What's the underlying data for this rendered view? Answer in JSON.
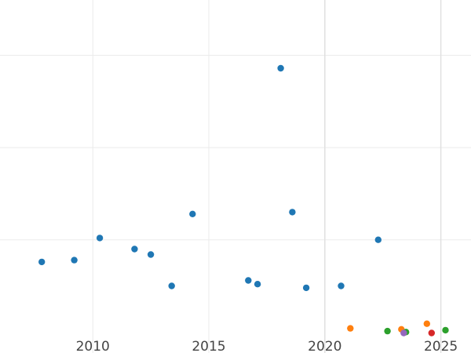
{
  "chart_data": {
    "type": "scatter",
    "title": "",
    "xlabel": "",
    "ylabel": "",
    "xlim": [
      2006,
      2026.3
    ],
    "ylim": [
      -0.2,
      18
    ],
    "x_ticks": [
      2010,
      2015,
      2020,
      2025
    ],
    "x_tick_labels": [
      "2010",
      "2015",
      "2020",
      "2025"
    ],
    "y_grid_values": [
      5,
      10,
      15
    ],
    "grid": true,
    "legend": "none",
    "series": [
      {
        "color": "#1f77b4",
        "points": [
          {
            "x": 2007.8,
            "y": 3.8
          },
          {
            "x": 2009.2,
            "y": 3.9
          },
          {
            "x": 2010.3,
            "y": 5.1
          },
          {
            "x": 2011.8,
            "y": 4.5
          },
          {
            "x": 2012.5,
            "y": 4.2
          },
          {
            "x": 2013.4,
            "y": 2.5
          },
          {
            "x": 2014.3,
            "y": 6.4
          },
          {
            "x": 2016.7,
            "y": 2.8
          },
          {
            "x": 2017.1,
            "y": 2.6
          },
          {
            "x": 2018.1,
            "y": 14.3
          },
          {
            "x": 2018.6,
            "y": 6.5
          },
          {
            "x": 2019.2,
            "y": 2.4
          },
          {
            "x": 2020.7,
            "y": 2.5
          },
          {
            "x": 2022.3,
            "y": 5.0
          }
        ]
      },
      {
        "color": "#ff7f0e",
        "points": [
          {
            "x": 2021.1,
            "y": 0.2
          },
          {
            "x": 2023.3,
            "y": 0.15
          },
          {
            "x": 2024.4,
            "y": 0.45
          }
        ]
      },
      {
        "color": "#2ca02c",
        "points": [
          {
            "x": 2022.7,
            "y": 0.05
          },
          {
            "x": 2023.5,
            "y": 0.0
          },
          {
            "x": 2025.2,
            "y": 0.1
          }
        ]
      },
      {
        "color": "#9467bd",
        "points": [
          {
            "x": 2023.4,
            "y": -0.05
          }
        ]
      },
      {
        "color": "#d62728",
        "points": [
          {
            "x": 2024.6,
            "y": -0.05
          }
        ]
      }
    ]
  }
}
